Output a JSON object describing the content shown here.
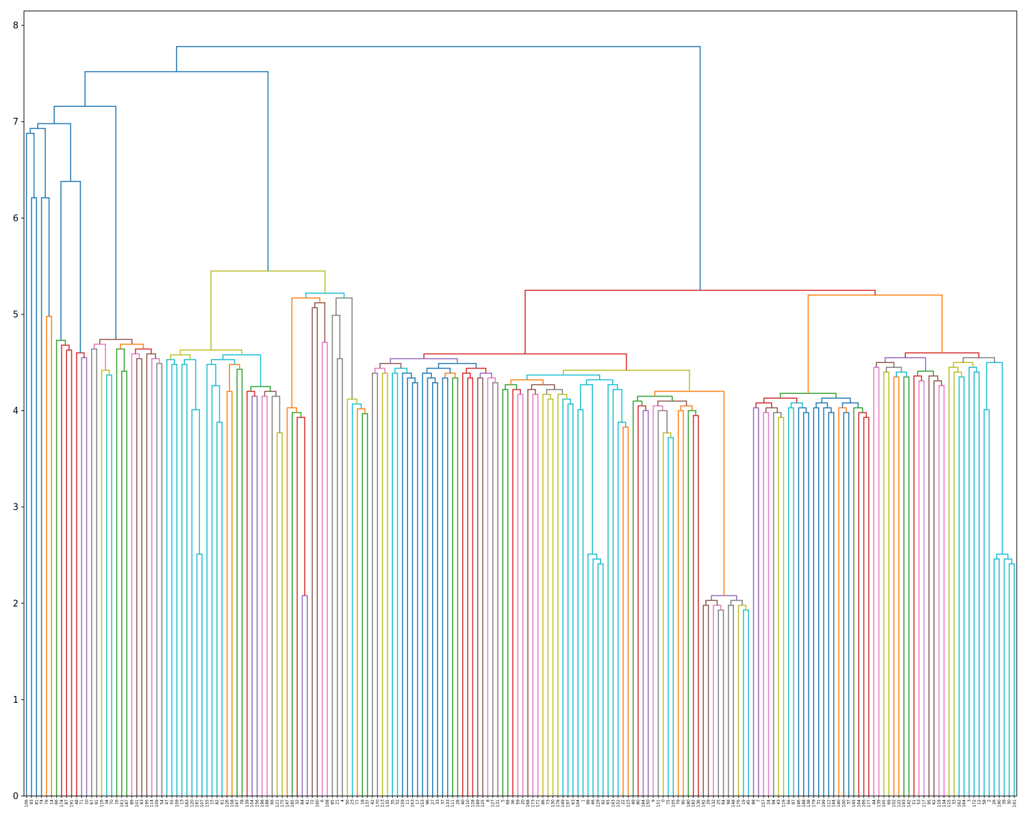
{
  "chart_data": {
    "type": "dendrogram",
    "title": "",
    "xlabel": "",
    "ylabel": "",
    "ylim": [
      0,
      8.15
    ],
    "y_ticks": [
      0,
      1,
      2,
      3,
      4,
      5,
      6,
      7,
      8
    ],
    "grid": false,
    "legend": "none",
    "leaf_labels": [
      "106",
      "93",
      "81",
      "74",
      "76",
      "14",
      "66",
      "174",
      "87",
      "191",
      "48",
      "71",
      "10",
      "67",
      "91",
      "116",
      "34",
      "70",
      "16",
      "161",
      "187",
      "89",
      "101",
      "83",
      "195",
      "114",
      "109",
      "54",
      "47",
      "55",
      "109",
      "13",
      "183",
      "120",
      "181",
      "107",
      "155",
      "15",
      "82",
      "61",
      "126",
      "158",
      "167",
      "78",
      "139",
      "154",
      "156",
      "198",
      "188",
      "66",
      "121",
      "175",
      "147",
      "185",
      "32",
      "84",
      "41",
      "72",
      "160",
      "6",
      "108",
      "85",
      "21",
      "4",
      "50",
      "23",
      "77",
      "18",
      "137",
      "42",
      "170",
      "113",
      "135",
      "35",
      "52",
      "159",
      "11",
      "163",
      "17",
      "153",
      "96",
      "27",
      "33",
      "37",
      "133",
      "111",
      "28",
      "40",
      "110",
      "128",
      "189",
      "125",
      "8",
      "127",
      "131",
      "5",
      "68",
      "36",
      "59",
      "20",
      "168",
      "173",
      "171",
      "86",
      "73",
      "130",
      "178",
      "149",
      "197",
      "63",
      "104",
      "1",
      "99",
      "46",
      "129",
      "92",
      "65",
      "143",
      "152",
      "22",
      "123",
      "49",
      "80",
      "184",
      "150",
      "9",
      "151",
      "0",
      "75",
      "105",
      "79",
      "90",
      "180",
      "182",
      "136",
      "192",
      "29",
      "132",
      "25",
      "64",
      "98",
      "148",
      "176",
      "19",
      "45",
      "88",
      "7",
      "157",
      "24",
      "94",
      "43",
      "119",
      "56",
      "97",
      "146",
      "188",
      "138",
      "179",
      "31",
      "199",
      "112",
      "144",
      "140",
      "100",
      "37",
      "145",
      "164",
      "166",
      "177",
      "44",
      "139",
      "105",
      "69",
      "102",
      "122",
      "193",
      "142",
      "51",
      "53",
      "117",
      "95",
      "62",
      "118",
      "134",
      "115",
      "33",
      "162",
      "164",
      "3",
      "172",
      "12",
      "58",
      "2",
      "26",
      "190",
      "39",
      "30",
      "141"
    ],
    "palette": {
      "C0": "#1f77b4",
      "C1": "#ff7f0e",
      "C2": "#2ca02c",
      "C3": "#d62728",
      "C4": "#9467bd",
      "C5": "#8c564b",
      "C6": "#e377c2",
      "C7": "#7f7f7f",
      "C8": "#bcbd22",
      "C9": "#17becf"
    },
    "links": [
      {
        "l": 0,
        "r": 1,
        "h": 7.78,
        "c": "C0"
      },
      {
        "l": 0,
        "r": 1,
        "h": 7.52,
        "c": "C0"
      },
      {
        "l": 0,
        "r": 1,
        "h": 7.16,
        "c": "C0"
      },
      {
        "l": 0,
        "r": 1,
        "h": 6.98,
        "c": "C0"
      },
      {
        "l": 0,
        "r": 1,
        "h": 7.38,
        "c": "C0"
      },
      {
        "l": 0,
        "r": 1,
        "h": 7.3,
        "c": "C0"
      },
      {
        "l": 0,
        "r": 1,
        "h": 6.21,
        "c": "C0"
      },
      {
        "l": 0,
        "r": 1,
        "h": 6.21,
        "c": "C0"
      },
      {
        "l": 0,
        "r": 1,
        "h": 4.98,
        "c": "C1"
      },
      {
        "l": 0,
        "r": 1,
        "h": 6.38,
        "c": "C0"
      },
      {
        "l": 0,
        "r": 1,
        "h": 4.73,
        "c": "C2"
      },
      {
        "l": 0,
        "r": 1,
        "h": 5.34,
        "c": "C3"
      },
      {
        "l": 0,
        "r": 1,
        "h": 4.95,
        "c": "C3"
      },
      {
        "l": 0,
        "r": 1,
        "h": 4.6,
        "c": "C3"
      },
      {
        "l": 0,
        "r": 1,
        "h": 5.07,
        "c": "C4"
      },
      {
        "l": 0,
        "r": 1,
        "h": 4.74,
        "c": "C5"
      },
      {
        "l": 0,
        "r": 1,
        "h": 5.08,
        "c": "C6"
      },
      {
        "l": 0,
        "r": 1,
        "h": 5.31,
        "c": "C7"
      },
      {
        "l": 0,
        "r": 1,
        "h": 4.42,
        "c": "C8"
      },
      {
        "l": 0,
        "r": 1,
        "h": 5.38,
        "c": "C9"
      },
      {
        "l": 0,
        "r": 1,
        "h": 5.34,
        "c": "C1"
      },
      {
        "l": 0,
        "r": 1,
        "h": 5.33,
        "c": "C2"
      },
      {
        "l": 0,
        "r": 1,
        "h": 4.41,
        "c": "C2"
      },
      {
        "l": 0,
        "r": 1,
        "h": 5.21,
        "c": "C3"
      },
      {
        "l": 0,
        "r": 1,
        "h": 5.29,
        "c": "C6"
      },
      {
        "l": 0,
        "r": 1,
        "h": 5.14,
        "c": "C5"
      },
      {
        "l": 0,
        "r": 1,
        "h": 4.72,
        "c": "C5"
      },
      {
        "l": 0,
        "r": 1,
        "h": 4.85,
        "c": "C6"
      },
      {
        "l": 0,
        "r": 1,
        "h": 5.1,
        "c": "C7"
      },
      {
        "l": 0,
        "r": 1,
        "h": 5.45,
        "c": "C8"
      },
      {
        "l": 0,
        "r": 1,
        "h": 4.63,
        "c": "C8"
      },
      {
        "l": 0,
        "r": 1,
        "h": 4.83,
        "c": "C8"
      },
      {
        "l": 0,
        "r": 1,
        "h": 5.38,
        "c": "C9"
      },
      {
        "l": 0,
        "r": 1,
        "h": 5.13,
        "c": "C9"
      },
      {
        "l": 0,
        "r": 1,
        "h": 4.81,
        "c": "C9"
      },
      {
        "l": 0,
        "r": 1,
        "h": 4.72,
        "c": "C9"
      },
      {
        "l": 0,
        "r": 1,
        "h": 4.01,
        "c": "C9"
      },
      {
        "l": 0,
        "r": 1,
        "h": 2.51,
        "c": "C9"
      },
      {
        "l": 0,
        "r": 1,
        "h": 4.94,
        "c": "C9"
      },
      {
        "l": 0,
        "r": 1,
        "h": 4.69,
        "c": "C9"
      },
      {
        "l": 0,
        "r": 1,
        "h": 4.49,
        "c": "C9"
      },
      {
        "l": 0,
        "r": 1,
        "h": 4.26,
        "c": "C9"
      },
      {
        "l": 0,
        "r": 1,
        "h": 3.88,
        "c": "C9"
      },
      {
        "l": 0,
        "r": 1,
        "h": 5.09,
        "c": "C1"
      },
      {
        "l": 0,
        "r": 1,
        "h": 4.2,
        "c": "C1"
      },
      {
        "l": 0,
        "r": 1,
        "h": 5.4,
        "c": "C2"
      },
      {
        "l": 0,
        "r": 1,
        "h": 4.25,
        "c": "C2"
      },
      {
        "l": 0,
        "r": 1,
        "h": 5.01,
        "c": "C3"
      },
      {
        "l": 0,
        "r": 1,
        "h": 5.02,
        "c": "C4"
      },
      {
        "l": 0,
        "r": 1,
        "h": 5.35,
        "c": "C5"
      },
      {
        "l": 0,
        "r": 1,
        "h": 5.28,
        "c": "C6"
      },
      {
        "l": 0,
        "r": 1,
        "h": 4.97,
        "c": "C7"
      },
      {
        "l": 0,
        "r": 1,
        "h": 3.77,
        "c": "C8"
      },
      {
        "l": 0,
        "r": 1,
        "h": 5.22,
        "c": "C9"
      },
      {
        "l": 0,
        "r": 1,
        "h": 5.21,
        "c": "C1"
      },
      {
        "l": 0,
        "r": 1,
        "h": 4.03,
        "c": "C1"
      },
      {
        "l": 0,
        "r": 1,
        "h": 4.94,
        "c": "C2"
      },
      {
        "l": 0,
        "r": 1,
        "h": 5.13,
        "c": "C3"
      },
      {
        "l": 0,
        "r": 1,
        "h": 2.08,
        "c": "C4"
      },
      {
        "l": 0,
        "r": 1,
        "h": 5.39,
        "c": "C5"
      },
      {
        "l": 0,
        "r": 1,
        "h": 5.07,
        "c": "C5"
      },
      {
        "l": 0,
        "r": 1,
        "h": 4.71,
        "c": "C6"
      },
      {
        "l": 0,
        "r": 1,
        "h": 5.44,
        "c": "C7"
      },
      {
        "l": 0,
        "r": 1,
        "h": 4.99,
        "c": "C7"
      },
      {
        "l": 0,
        "r": 1,
        "h": 4.54,
        "c": "C7"
      },
      {
        "l": 0,
        "r": 1,
        "h": 4.12,
        "c": "C8"
      },
      {
        "l": 0,
        "r": 1,
        "h": 4.86,
        "c": "C9"
      },
      {
        "l": 0,
        "r": 1,
        "h": 5.31,
        "c": "C1"
      },
      {
        "l": 0,
        "r": 1,
        "h": 4.18,
        "c": "C2"
      },
      {
        "l": 0,
        "r": 1,
        "h": 5.25,
        "c": "C3"
      },
      {
        "l": 0,
        "r": 1,
        "h": 4.59,
        "c": "C3"
      },
      {
        "l": 0,
        "r": 1,
        "h": 5.09,
        "c": "C4"
      },
      {
        "l": 0,
        "r": 1,
        "h": 5.34,
        "c": "C5"
      },
      {
        "l": 0,
        "r": 1,
        "h": 5.05,
        "c": "C6"
      },
      {
        "l": 0,
        "r": 1,
        "h": 5.1,
        "c": "C7"
      },
      {
        "l": 0,
        "r": 1,
        "h": 5.33,
        "c": "C8"
      },
      {
        "l": 0,
        "r": 1,
        "h": 5.29,
        "c": "C9"
      },
      {
        "l": 0,
        "r": 1,
        "h": 4.76,
        "c": "C9"
      }
    ]
  }
}
